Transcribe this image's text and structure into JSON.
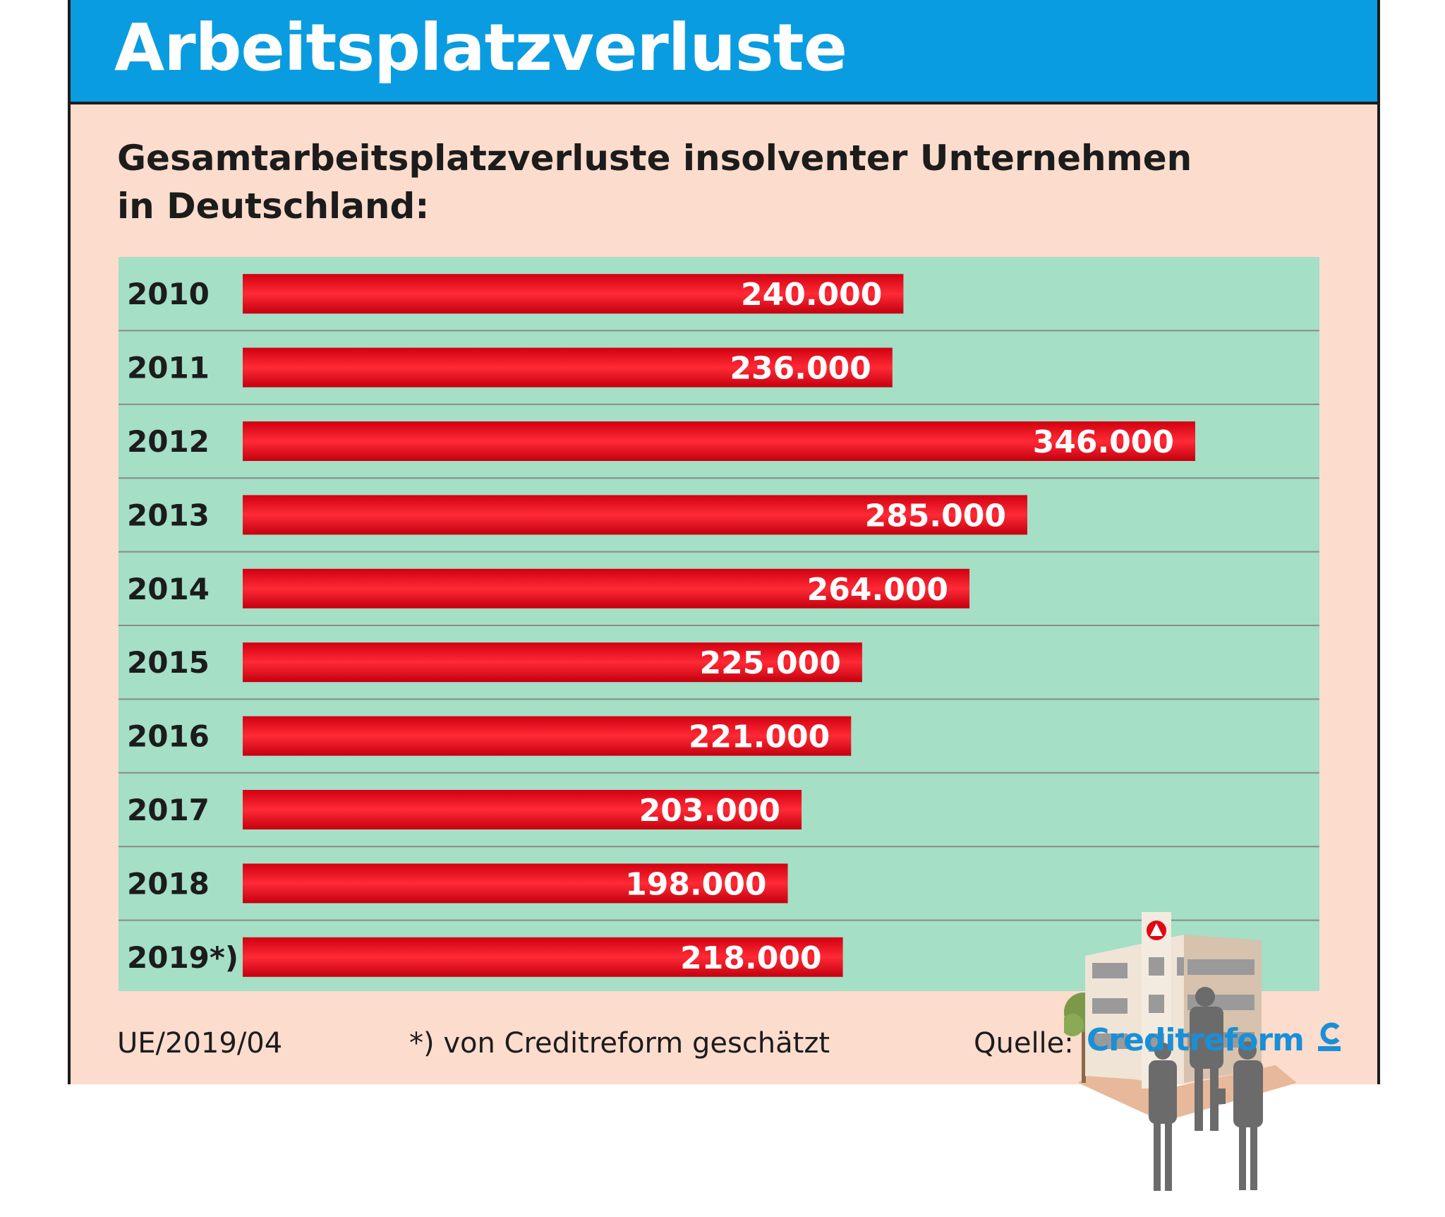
{
  "header": {
    "title": "Arbeitsplatzverluste"
  },
  "subtitle": "Gesamtarbeitsplatzverluste insolventer Unternehmen\nin Deutschland:",
  "colors": {
    "header": "#0a9ce0",
    "background": "#fcdccd",
    "plot": "#a4dfc6",
    "bar": "#e30613",
    "logo": "#1a8fd6"
  },
  "chart_data": {
    "type": "bar",
    "orientation": "horizontal",
    "categories": [
      "2010",
      "2011",
      "2012",
      "2013",
      "2014",
      "2015",
      "2016",
      "2017",
      "2018",
      "2019*)"
    ],
    "values": [
      240000,
      236000,
      346000,
      285000,
      264000,
      225000,
      221000,
      203000,
      198000,
      218000
    ],
    "value_labels": [
      "240.000",
      "236.000",
      "346.000",
      "285.000",
      "264.000",
      "225.000",
      "221.000",
      "203.000",
      "198.000",
      "218.000"
    ],
    "title": "Arbeitsplatzverluste",
    "subtitle": "Gesamtarbeitsplatzverluste insolventer Unternehmen in Deutschland:",
    "xlim": [
      0,
      346000
    ]
  },
  "footer": {
    "code": "UE/2019/04",
    "note": "*) von Creditreform geschätzt",
    "source_label": "Quelle:",
    "source_name": "Creditreform"
  },
  "icons": {
    "illustration": "office-building-with-people",
    "logo_mark": "creditreform-c-mark"
  }
}
